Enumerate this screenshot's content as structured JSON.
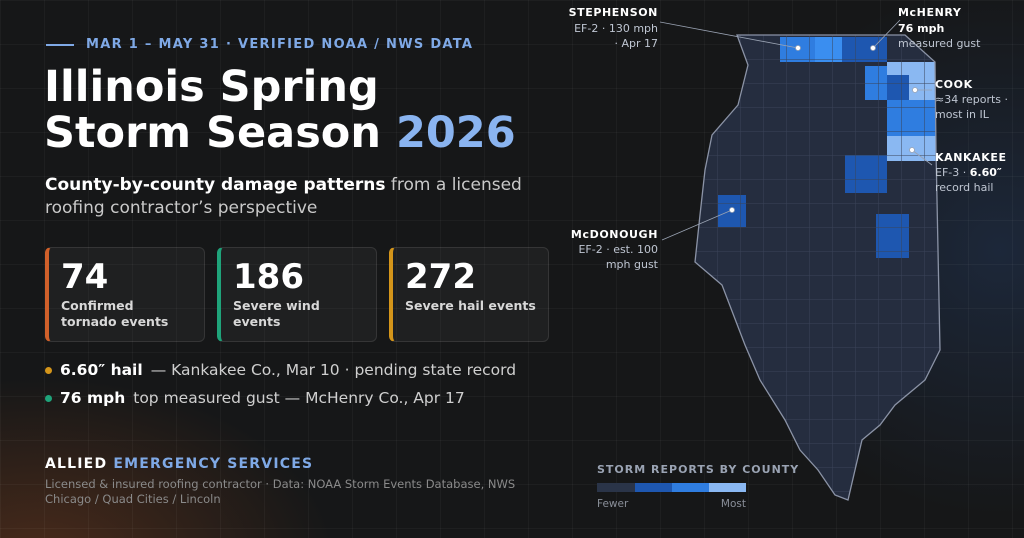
{
  "header": {
    "eyebrow": "MAR 1 – MAY 31 · VERIFIED NOAA / NWS DATA",
    "title_line1": "Illinois Spring",
    "title_line2": "Storm Season",
    "title_year": "2026"
  },
  "subtitle": {
    "bold": "County-by-county damage patterns",
    "rest": "from a licensed roofing contractor’s perspective"
  },
  "stats": [
    {
      "value": 74,
      "label": "Confirmed tornado events"
    },
    {
      "value": 186,
      "label": "Severe wind events"
    },
    {
      "value": 272,
      "label": "Severe hail events"
    }
  ],
  "highlights": [
    {
      "bold": "6.60″ hail",
      "text": "— Kankakee Co., Mar 10 · pending state record"
    },
    {
      "bold": "76 mph",
      "text": "top measured gust — McHenry Co., Apr 17"
    }
  ],
  "footer": {
    "brand": "ALLIED",
    "brand_accent": "EMERGENCY SERVICES",
    "note": "Licensed & insured roofing contractor · Data: NOAA Storm Events Database, NWS Chicago / Quad Cities / Lincoln"
  },
  "map": {
    "callouts": [
      {
        "name": "STEPHENSON",
        "lines": [
          "EF-2 · 130 mph",
          "· Apr 17"
        ]
      },
      {
        "name": "McHENRY",
        "bold": "76 mph",
        "lines": [
          "measured gust"
        ]
      },
      {
        "name": "COOK",
        "lines": [
          "≈34 reports ·",
          "most in IL"
        ]
      },
      {
        "name": "KANKAKEE",
        "pre": "EF-3 · ",
        "bold": "6.60″",
        "lines": [
          "record hail"
        ]
      },
      {
        "name": "McDONOUGH",
        "lines": [
          "EF-2 · est. 100",
          "mph gust"
        ]
      }
    ],
    "legend": {
      "title": "STORM REPORTS BY COUNTY",
      "low": "Fewer",
      "high": "Most"
    }
  }
}
